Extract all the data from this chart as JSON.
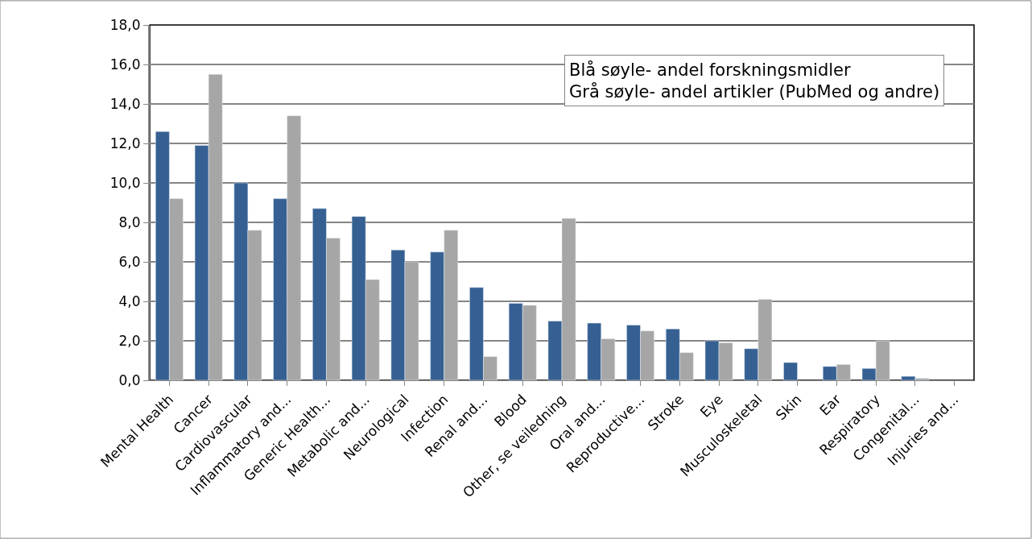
{
  "chart_data": {
    "type": "bar",
    "categories": [
      "Mental Health",
      "Cancer",
      "Cardiovascular",
      "Inflammatory and...",
      "Generic Health...",
      "Metabolic and...",
      "Neurological",
      "Infection",
      "Renal and...",
      "Blood",
      "Other, se veiledning",
      "Oral and...",
      "Reproductive...",
      "Stroke",
      "Eye",
      "Musculoskeletal",
      "Skin",
      "Ear",
      "Respiratory",
      "Congenital...",
      "Injuries and..."
    ],
    "series": [
      {
        "color": "#366092",
        "values": [
          12.6,
          11.9,
          10.0,
          9.2,
          8.7,
          8.3,
          6.6,
          6.5,
          4.7,
          3.9,
          3.0,
          2.9,
          2.8,
          2.6,
          2.0,
          1.6,
          0.9,
          0.7,
          0.6,
          0.2,
          null
        ]
      },
      {
        "color": "#a6a6a6",
        "values": [
          9.2,
          15.5,
          7.6,
          13.4,
          7.2,
          5.1,
          6.0,
          7.6,
          1.2,
          3.8,
          8.2,
          2.1,
          2.5,
          1.4,
          1.9,
          4.1,
          null,
          0.8,
          2.0,
          0.1,
          null
        ]
      }
    ],
    "ylim": [
      0,
      18
    ],
    "yticks": [
      {
        "value": 0,
        "label": "0,0"
      },
      {
        "value": 2,
        "label": "2,0"
      },
      {
        "value": 4,
        "label": "4,0"
      },
      {
        "value": 6,
        "label": "6,0"
      },
      {
        "value": 8,
        "label": "8,0"
      },
      {
        "value": 10,
        "label": "10,0"
      },
      {
        "value": 12,
        "label": "12,0"
      },
      {
        "value": 14,
        "label": "14,0"
      },
      {
        "value": 16,
        "label": "16,0"
      },
      {
        "value": 18,
        "label": "18,0"
      }
    ],
    "grid": "y",
    "annotations": [
      "Blå søyle- andel forskningsmidler\nGrå søyle- andel artikler (PubMed og andre)"
    ]
  }
}
